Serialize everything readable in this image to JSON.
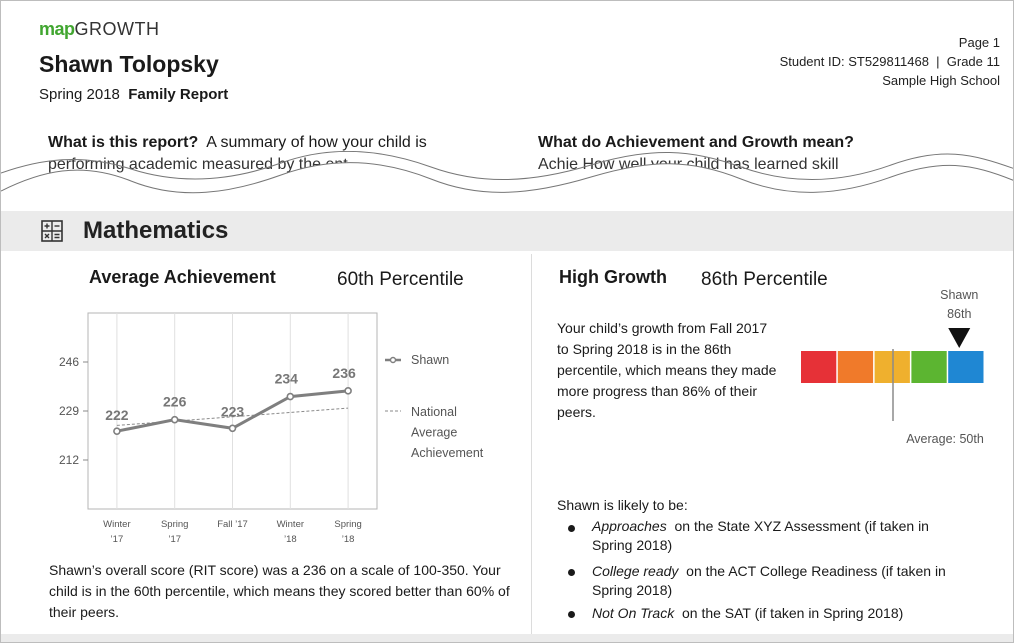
{
  "header": {
    "logo_bold": "map",
    "logo_light": "GROWTH",
    "student_name": "Shawn Tolopsky",
    "term": "Spring 2018",
    "report_type": "Family Report",
    "page": "Page 1",
    "student_id_line": "Student ID: ST529811468  |  Grade 11",
    "school": "Sample High School"
  },
  "intro": {
    "left_question": "What is this report?",
    "left_answer": "A summary of how your child is",
    "left_cut": "performing academic       measured by the           ent",
    "right_question": "What do Achievement and Growth mean?",
    "right_cut": "Achie            How well your child has learned skill"
  },
  "subject": {
    "icon": "calculator-icon",
    "title": "Mathematics"
  },
  "achievement": {
    "title": "Average Achievement",
    "percentile": "60th Percentile",
    "description": "Shawn’s overall score (RIT score) was a 236 on a scale of 100-350. Your child is in the 60th percentile, which means they scored better than 60% of their peers."
  },
  "chart_data": {
    "type": "line",
    "x": [
      "Winter ’17",
      "Spring ’17",
      "Fall ’17",
      "Winter ’18",
      "Spring ’18"
    ],
    "x_labels": [
      [
        "Winter",
        "’17"
      ],
      [
        "Spring",
        "’17"
      ],
      [
        "Fall ’17",
        ""
      ],
      [
        "Winter",
        "’18"
      ],
      [
        "Spring",
        "’18"
      ]
    ],
    "series": [
      {
        "name": "Shawn",
        "values": [
          222,
          226,
          223,
          234,
          236
        ]
      },
      {
        "name": "National Average Achievement",
        "values": [
          224,
          225.5,
          227,
          228.5,
          230
        ]
      }
    ],
    "yticks": [
      212,
      229,
      246
    ],
    "ylim": [
      195,
      263
    ],
    "legend": [
      "Shawn",
      "National",
      "Average",
      "Achievement"
    ],
    "colors": {
      "shawn": "#7f7f7f",
      "national": "#8a8a8a",
      "grid": "#e0e0e0"
    }
  },
  "growth": {
    "title": "High Growth",
    "percentile": "86th Percentile",
    "description": "Your child’s growth from Fall 2017 to Spring 2018 is in the 86th percentile, which means they made more progress than 86% of their peers.",
    "marker_name": "Shawn",
    "marker_pct_label": "86th",
    "marker_value": 86,
    "average_label": "Average: 50th",
    "average_value": 50,
    "band_colors": [
      "#e63137",
      "#f07a2a",
      "#efb02e",
      "#5cb531",
      "#1f87d3"
    ]
  },
  "projections": {
    "intro": "Shawn is likely to be:",
    "items": [
      {
        "status": "Approaches",
        "rest": "on the State XYZ Assessment (if taken in",
        "line2": "Spring 2018)"
      },
      {
        "status": "College ready",
        "rest": "on the ACT College Readiness (if taken in",
        "line2": "Spring 2018)"
      },
      {
        "status": "Not On Track",
        "rest": "on the SAT (if taken in Spring 2018)",
        "line2": ""
      }
    ]
  }
}
